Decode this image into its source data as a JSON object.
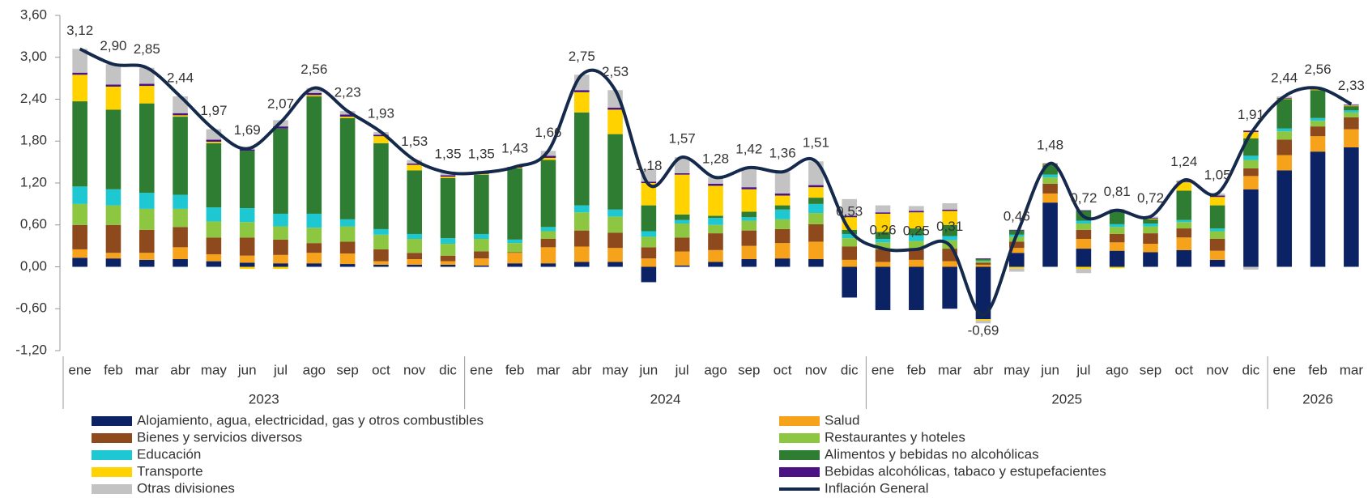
{
  "chart_data": {
    "type": "bar",
    "stacked": true,
    "categories": [
      "ene",
      "feb",
      "mar",
      "abr",
      "may",
      "jun",
      "jul",
      "ago",
      "sep",
      "oct",
      "nov",
      "dic",
      "ene",
      "feb",
      "mar",
      "abr",
      "may",
      "jun",
      "jul",
      "ago",
      "sep",
      "oct",
      "nov",
      "dic",
      "ene",
      "feb",
      "mar",
      "abr",
      "may",
      "jun",
      "jul",
      "ago",
      "sep",
      "oct",
      "nov",
      "dic",
      "ene",
      "feb",
      "mar"
    ],
    "years": [
      "2023",
      "2024",
      "2025",
      "2026"
    ],
    "ylim": [
      -1.2,
      3.6
    ],
    "yticks": [
      {
        "value": -1.2,
        "label": "-1,20"
      },
      {
        "value": -0.6,
        "label": "-0,60"
      },
      {
        "value": 0,
        "label": "0,00"
      },
      {
        "value": 0.6,
        "label": "0,60"
      },
      {
        "value": 1.2,
        "label": "1,20"
      },
      {
        "value": 1.8,
        "label": "1,80"
      },
      {
        "value": 2.4,
        "label": "2,40"
      },
      {
        "value": 3.0,
        "label": "3,00"
      },
      {
        "value": 3.6,
        "label": "3,60"
      }
    ],
    "grid": false,
    "series": [
      {
        "name": "Alojamiento, agua, electricidad, gas y otros combustibles",
        "color": "#0b2265",
        "values": [
          0.13,
          0.12,
          0.1,
          0.11,
          0.08,
          0.06,
          0.05,
          0.05,
          0.04,
          0.03,
          0.03,
          0.03,
          0.02,
          0.05,
          0.05,
          0.07,
          0.07,
          -0.22,
          0.02,
          0.07,
          0.11,
          0.12,
          0.11,
          -0.44,
          -0.62,
          -0.62,
          -0.6,
          -0.75,
          0.2,
          0.92,
          0.26,
          0.23,
          0.21,
          0.24,
          0.1,
          1.11,
          1.38,
          1.65,
          1.71
        ]
      },
      {
        "name": "Salud",
        "color": "#f7a21b",
        "values": [
          0.12,
          0.08,
          0.1,
          0.17,
          0.1,
          0.1,
          0.12,
          0.15,
          0.15,
          0.05,
          0.08,
          0.05,
          0.1,
          0.15,
          0.23,
          0.22,
          0.2,
          0.12,
          0.2,
          0.17,
          0.19,
          0.22,
          0.25,
          0.1,
          0.07,
          0.1,
          0.08,
          0.03,
          0.07,
          0.13,
          0.14,
          0.12,
          0.12,
          0.18,
          0.13,
          0.19,
          0.22,
          0.22,
          0.26
        ]
      },
      {
        "name": "Bienes y servicios diversos",
        "color": "#8e4a1c",
        "values": [
          0.35,
          0.4,
          0.33,
          0.29,
          0.24,
          0.26,
          0.22,
          0.14,
          0.17,
          0.17,
          0.09,
          0.08,
          0.1,
          0.01,
          0.12,
          0.23,
          0.22,
          0.16,
          0.2,
          0.24,
          0.22,
          0.2,
          0.25,
          0.19,
          0.18,
          0.15,
          0.18,
          0.03,
          0.09,
          0.14,
          0.13,
          0.12,
          0.15,
          0.13,
          0.17,
          0.11,
          0.22,
          0.14,
          0.17
        ]
      },
      {
        "name": "Restaurantes y hoteles",
        "color": "#8dc641",
        "values": [
          0.3,
          0.28,
          0.3,
          0.26,
          0.23,
          0.22,
          0.19,
          0.22,
          0.22,
          0.21,
          0.2,
          0.17,
          0.18,
          0.13,
          0.11,
          0.26,
          0.23,
          0.15,
          0.2,
          0.12,
          0.14,
          0.14,
          0.16,
          0.12,
          0.1,
          0.12,
          0.12,
          0.02,
          0.07,
          0.09,
          0.09,
          0.1,
          0.1,
          0.09,
          0.11,
          0.12,
          0.12,
          0.08,
          0.07
        ]
      },
      {
        "name": "Educación",
        "color": "#1ec8d2",
        "values": [
          0.25,
          0.23,
          0.23,
          0.2,
          0.2,
          0.2,
          0.18,
          0.2,
          0.1,
          0.08,
          0.07,
          0.08,
          0.07,
          0.05,
          0.06,
          0.1,
          0.1,
          0.08,
          0.05,
          0.1,
          0.05,
          0.14,
          0.13,
          0.06,
          0.05,
          0.08,
          0.06,
          0.01,
          0.03,
          0.04,
          0.04,
          0.04,
          0.04,
          0.03,
          0.04,
          0.06,
          0.04,
          0.04,
          0.03
        ]
      },
      {
        "name": "Alimentos y bebidas no alcohólicas",
        "color": "#2e7d32",
        "values": [
          1.22,
          1.14,
          1.28,
          1.12,
          0.92,
          0.82,
          1.22,
          1.68,
          1.45,
          1.23,
          0.91,
          0.86,
          0.85,
          1.02,
          0.96,
          1.33,
          1.08,
          0.37,
          0.08,
          0.03,
          0.08,
          0.06,
          0.09,
          0.06,
          0.1,
          0.1,
          0.16,
          0.02,
          0.06,
          0.14,
          0.14,
          0.18,
          0.06,
          0.42,
          0.33,
          0.25,
          0.42,
          0.4,
          0.06
        ]
      },
      {
        "name": "Transporte",
        "color": "#ffd200",
        "values": [
          0.38,
          0.33,
          0.25,
          0.02,
          0.02,
          -0.03,
          -0.03,
          0.02,
          0.02,
          0.1,
          0.08,
          0.02,
          0.01,
          0.01,
          0.03,
          0.29,
          0.35,
          0.32,
          0.57,
          0.43,
          0.32,
          0.14,
          0.15,
          0.18,
          0.26,
          0.23,
          0.2,
          -0.02,
          -0.02,
          0.01,
          -0.03,
          -0.02,
          0.01,
          0.12,
          0.12,
          0.09,
          0.01,
          0.01,
          0.01
        ]
      },
      {
        "name": "Bebidas alcohólicas, tabaco y estupefacientes",
        "color": "#4b1283",
        "values": [
          0.03,
          0.03,
          0.03,
          0.03,
          0.03,
          0.02,
          0.03,
          0.03,
          0.03,
          0.02,
          0.02,
          0.02,
          0.01,
          0.01,
          0.03,
          0.03,
          0.03,
          0.02,
          0.02,
          0.03,
          0.03,
          0.03,
          0.03,
          0.02,
          0.02,
          0.02,
          0.02,
          0.01,
          0.01,
          0.01,
          0.01,
          0.02,
          0.01,
          0.01,
          0.02,
          0.02,
          0.01,
          0.01,
          0.01
        ]
      },
      {
        "name": "Otras divisiones",
        "color": "#c3c3c3",
        "values": [
          0.34,
          0.29,
          0.23,
          0.24,
          0.15,
          0.04,
          0.09,
          0.07,
          0.05,
          0.04,
          0.05,
          0.04,
          0.01,
          0.0,
          0.07,
          0.22,
          0.25,
          0.18,
          0.23,
          0.09,
          0.28,
          0.31,
          0.34,
          0.24,
          0.1,
          0.07,
          0.09,
          -0.04,
          -0.05,
          0.0,
          -0.06,
          0.02,
          0.02,
          0.02,
          0.03,
          -0.04,
          0.02,
          0.01,
          0.01
        ]
      }
    ],
    "line": {
      "name": "Inflación General",
      "color": "#14294b",
      "values": [
        3.12,
        2.9,
        2.85,
        2.44,
        1.97,
        1.69,
        2.07,
        2.56,
        2.23,
        1.93,
        1.53,
        1.35,
        1.35,
        1.43,
        1.66,
        2.75,
        2.53,
        1.18,
        1.57,
        1.28,
        1.42,
        1.36,
        1.51,
        0.53,
        0.26,
        0.25,
        0.31,
        -0.69,
        0.46,
        1.48,
        0.72,
        0.81,
        0.72,
        1.24,
        1.05,
        1.91,
        2.44,
        2.56,
        2.33
      ],
      "value_labels": [
        "3,12",
        "2,90",
        "2,85",
        "2,44",
        "1,97",
        "1,69",
        "2,07",
        "2,56",
        "2,23",
        "1,93",
        "1,53",
        "1,35",
        "1,35",
        "1,43",
        "1,66",
        "2,75",
        "2,53",
        "1,18",
        "1,57",
        "1,28",
        "1,42",
        "1,36",
        "1,51",
        "0,53",
        "0,26",
        "0,25",
        "0,31",
        "-0,69",
        "0,46",
        "1,48",
        "0,72",
        "0,81",
        "0,72",
        "1,24",
        "1,05",
        "1,91",
        "2,44",
        "2,56",
        "2,33"
      ]
    }
  }
}
